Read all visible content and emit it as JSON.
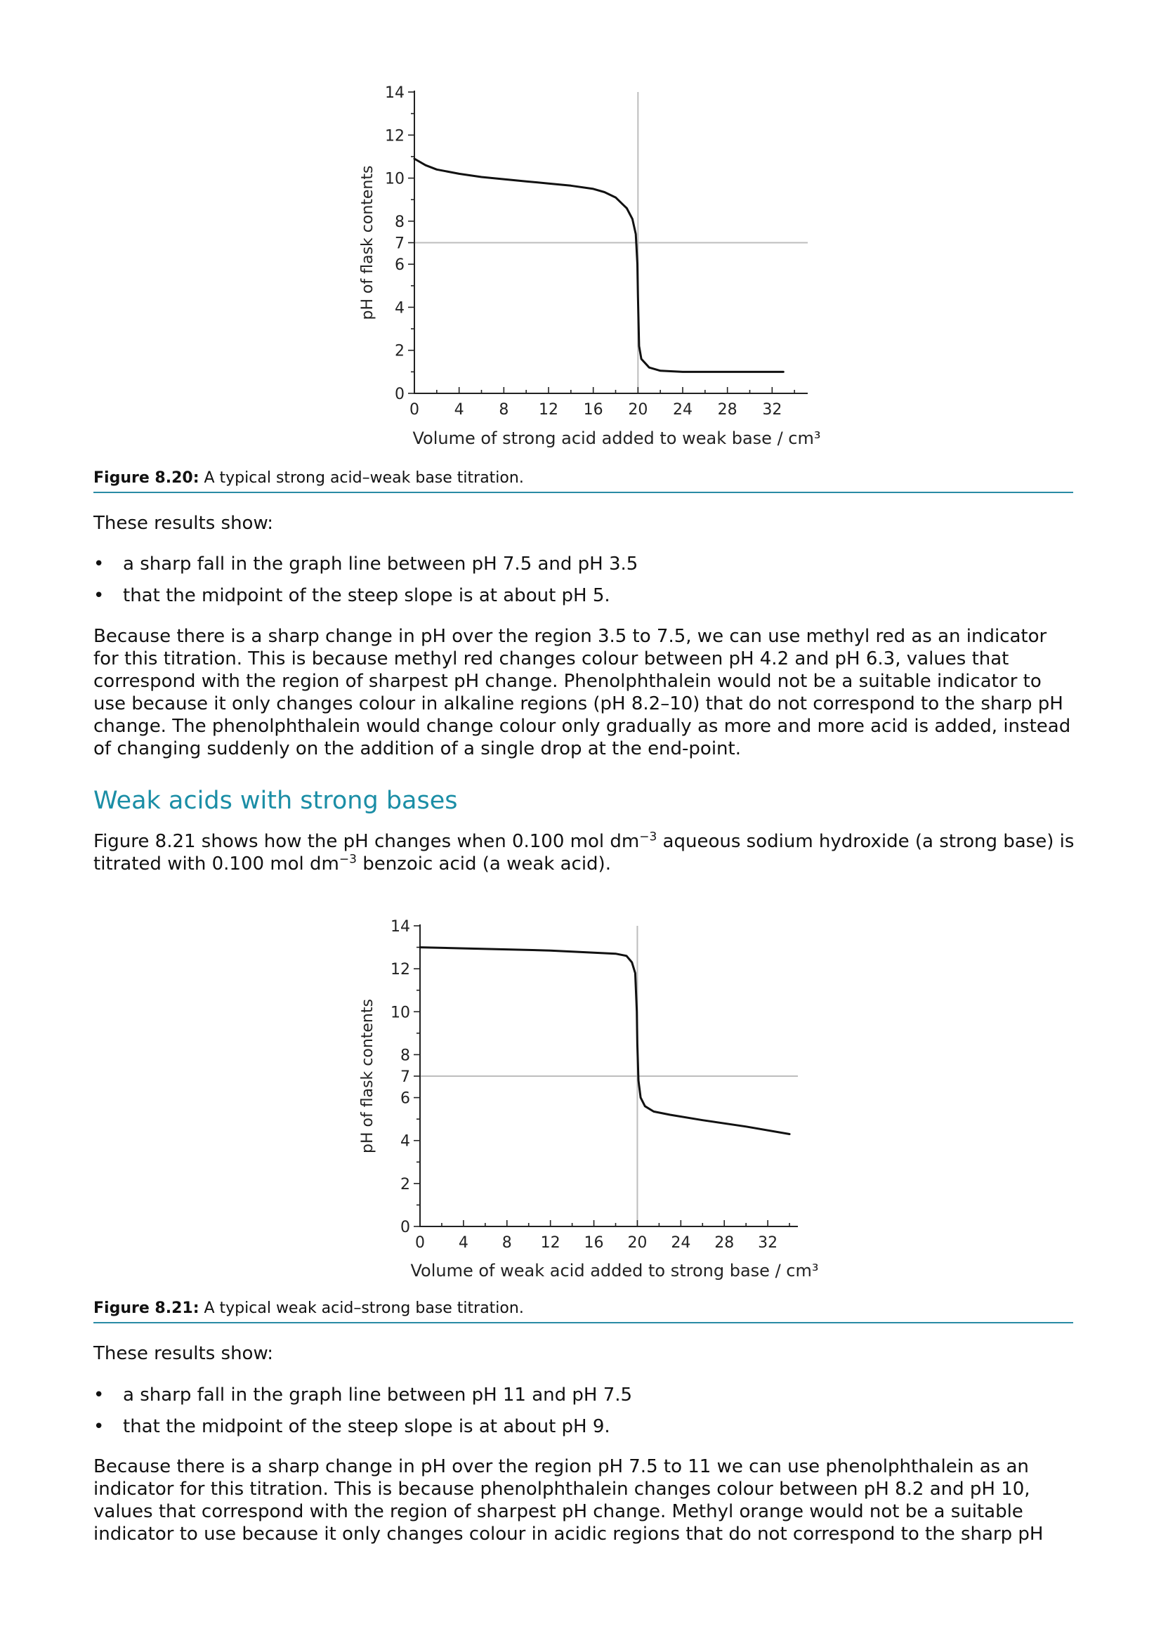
{
  "figure_1": {
    "chart_data": {
      "type": "line",
      "title": "",
      "xlabel": "Volume of strong acid added to weak base / cm³",
      "ylabel": "pH of flask contents",
      "xlim": [
        0,
        36
      ],
      "ylim": [
        0,
        14
      ],
      "x_ticks": [
        "0",
        "4",
        "8",
        "12",
        "16",
        "20",
        "24",
        "28",
        "32"
      ],
      "y_ticks": [
        "0",
        "2",
        "4",
        "6",
        "7",
        "8",
        "10",
        "12",
        "14"
      ],
      "reference_lines": {
        "vertical_x": 20,
        "horizontal_y": 7
      },
      "series": [
        {
          "x": [
            0,
            1,
            2,
            4,
            6,
            8,
            10,
            12,
            14,
            16,
            17,
            18,
            19,
            19.5,
            19.8,
            19.95,
            20,
            20.1,
            20.3,
            21,
            22,
            24,
            28,
            33
          ],
          "y": [
            10.9,
            10.6,
            10.4,
            10.2,
            10.05,
            9.95,
            9.85,
            9.75,
            9.65,
            9.5,
            9.35,
            9.1,
            8.6,
            8.1,
            7.4,
            6.0,
            4.5,
            2.2,
            1.6,
            1.2,
            1.05,
            1.0,
            1.0,
            1.0
          ]
        }
      ],
      "color": "#111111"
    },
    "caption_label": "Figure 8.20:",
    "caption_text": " A typical strong acid–weak base titration."
  },
  "section_1": {
    "intro": "These results show:",
    "bullets": [
      "a sharp fall in the graph line between pH 7.5 and pH 3.5",
      "that the midpoint of the steep slope is at about pH 5."
    ],
    "paragraph": "Because there is a sharp change in pH over the region 3.5 to 7.5, we can use methyl red as an indicator for this titration. This is because methyl red changes colour between pH 4.2 and pH 6.3, values that correspond with the region of sharpest pH change. Phenolphthalein would not be a suitable indicator to use because it only changes colour in alkaline regions (pH 8.2–10) that do not correspond to the sharp pH change. The phenolphthalein would change colour only gradually as more and more acid is added, instead of changing suddenly on the addition of a single drop at the end-point."
  },
  "heading": "Weak acids with strong bases",
  "intro_2": {
    "part1": "Figure 8.21 shows how the pH changes when 0.100 mol dm",
    "sup1": "−3",
    "part2": " aqueous sodium hydroxide (a strong base) is titrated with 0.100 mol dm",
    "sup2": "−3",
    "part3": " benzoic acid (a weak acid)."
  },
  "figure_2": {
    "chart_data": {
      "type": "line",
      "title": "",
      "xlabel": "Volume of weak acid added to strong base / cm³",
      "ylabel": "pH of flask contents",
      "xlim": [
        0,
        36
      ],
      "ylim": [
        0,
        14
      ],
      "x_ticks": [
        "0",
        "4",
        "8",
        "12",
        "16",
        "20",
        "24",
        "28",
        "32"
      ],
      "y_ticks": [
        "0",
        "2",
        "4",
        "6",
        "7",
        "8",
        "10",
        "12",
        "14"
      ],
      "reference_lines": {
        "vertical_x": 20,
        "horizontal_y": 7
      },
      "series": [
        {
          "x": [
            0,
            4,
            8,
            12,
            16,
            18,
            19,
            19.5,
            19.8,
            19.95,
            20,
            20.1,
            20.3,
            20.7,
            21.5,
            23,
            26,
            30,
            34
          ],
          "y": [
            13.0,
            12.95,
            12.9,
            12.85,
            12.75,
            12.7,
            12.6,
            12.3,
            11.8,
            10.0,
            8.5,
            6.8,
            6.0,
            5.6,
            5.35,
            5.2,
            4.95,
            4.65,
            4.3
          ]
        }
      ],
      "color": "#111111"
    },
    "caption_label": "Figure 8.21:",
    "caption_text": " A typical weak acid–strong base titration."
  },
  "section_2": {
    "intro": "These results show:",
    "bullets": [
      "a sharp fall in the graph line between pH 11 and pH 7.5",
      "that the midpoint of the steep slope is at about pH 9."
    ],
    "paragraph": "Because there is a sharp change in pH over the region pH 7.5 to 11 we can use phenolphthalein as an indicator for this titration. This is because phenolphthalein changes colour between pH 8.2 and pH 10, values that correspond with the region of sharpest pH change. Methyl orange would not be a suitable indicator to use because it only changes colour in acidic regions that do not correspond to the sharp pH"
  },
  "bullet_symbol": "•"
}
